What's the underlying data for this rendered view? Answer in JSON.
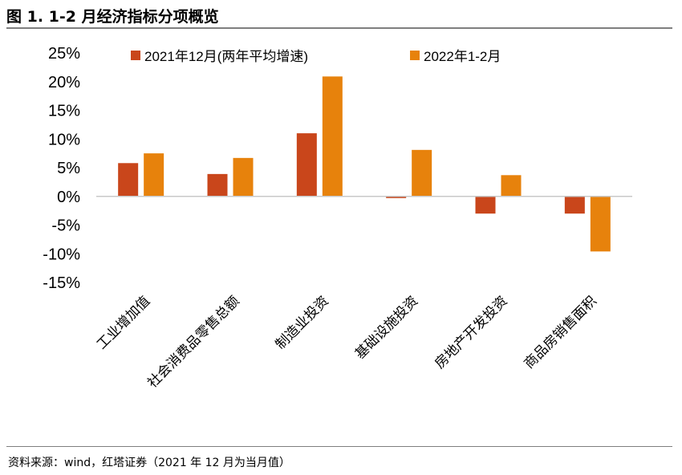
{
  "figure": {
    "title": "图 1. 1-2 月经济指标分项概览",
    "source": "资料来源：wind，红塔证券（2021 年 12 月为当月值）"
  },
  "chart_data": {
    "type": "bar",
    "categories": [
      "工业增加值",
      "社会消费品零售总额",
      "制造业投资",
      "基础设施投资",
      "房地产开发投资",
      "商品房销售面积"
    ],
    "series": [
      {
        "name": "2021年12月(两年平均增速)",
        "color": "#c9461b",
        "values": [
          5.8,
          3.9,
          11.0,
          -0.3,
          -3.0,
          -3.0
        ]
      },
      {
        "name": "2022年1-2月",
        "color": "#e7820c",
        "values": [
          7.5,
          6.7,
          20.9,
          8.1,
          3.7,
          -9.6
        ]
      }
    ],
    "y_ticks": [
      "25%",
      "20%",
      "15%",
      "10%",
      "5%",
      "0%",
      "-5%",
      "-10%",
      "-15%"
    ],
    "ylim": [
      -15,
      25
    ],
    "unit": "%",
    "grid": false,
    "legend_position": "top"
  }
}
